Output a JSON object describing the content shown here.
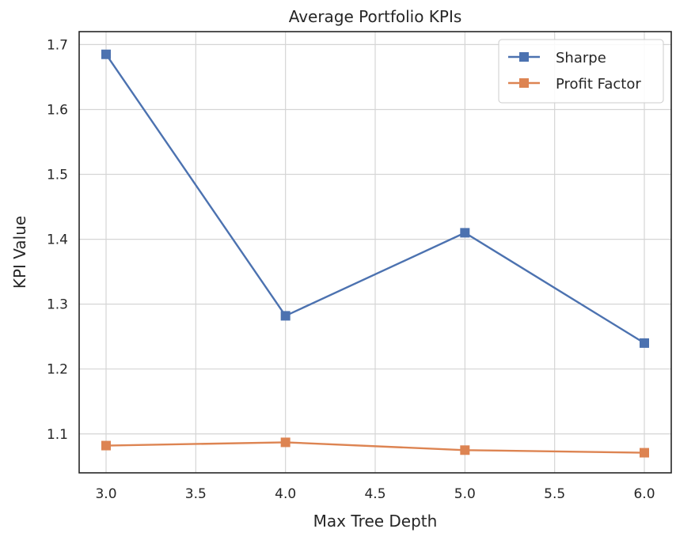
{
  "chart_data": {
    "type": "line",
    "title": "Average Portfolio KPIs",
    "xlabel": "Max Tree Depth",
    "ylabel": "KPI Value",
    "x": [
      3.0,
      4.0,
      5.0,
      6.0
    ],
    "xlim": [
      2.85,
      6.15
    ],
    "ylim": [
      1.04,
      1.72
    ],
    "xticks": [
      "3.0",
      "3.5",
      "4.0",
      "4.5",
      "5.0",
      "5.5",
      "6.0"
    ],
    "yticks": [
      "1.1",
      "1.2",
      "1.3",
      "1.4",
      "1.5",
      "1.6",
      "1.7"
    ],
    "grid": true,
    "legend_position": "top-right",
    "marker": "square",
    "series": [
      {
        "name": "Sharpe",
        "color": "#4c72b0",
        "values": [
          1.685,
          1.282,
          1.41,
          1.24
        ]
      },
      {
        "name": "Profit Factor",
        "color": "#dd8452",
        "values": [
          1.082,
          1.087,
          1.075,
          1.071
        ]
      }
    ]
  }
}
